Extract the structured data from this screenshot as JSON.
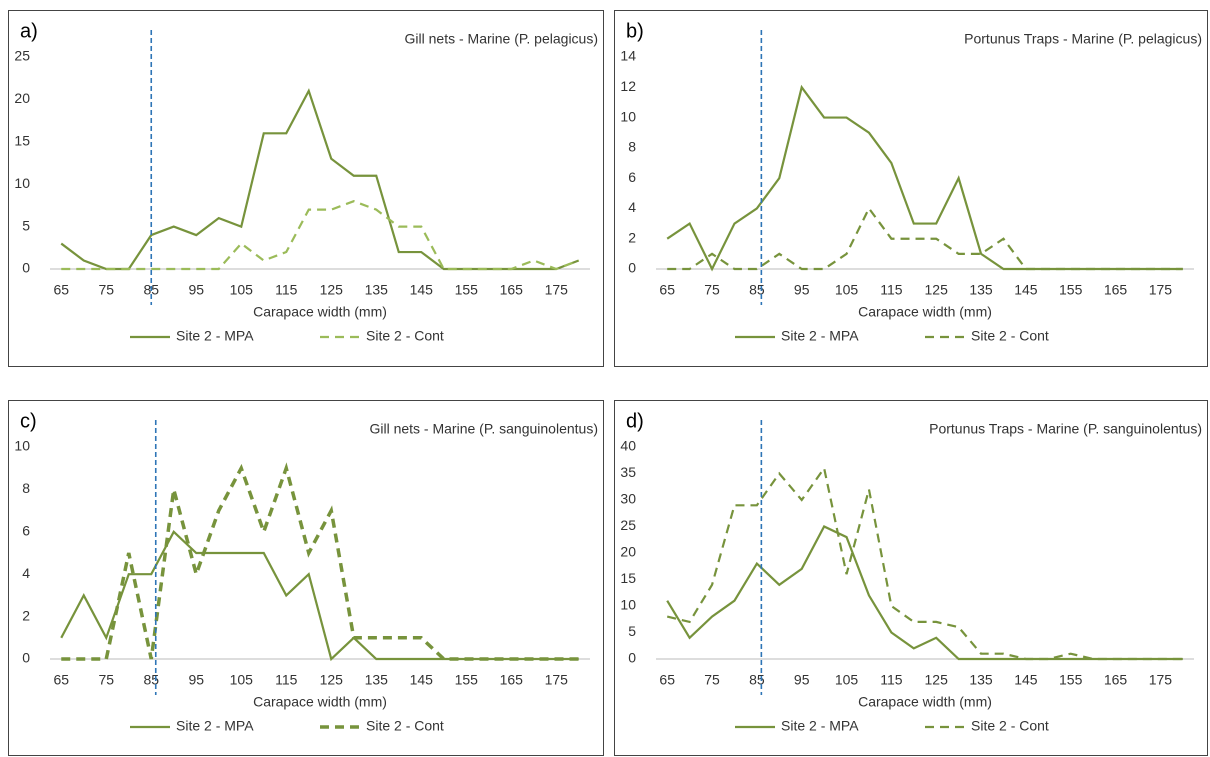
{
  "chart_data": [
    {
      "type": "line",
      "panel_label": "a)",
      "title": "Gill nets - Marine (P. pelagicus)",
      "x_label": "Carapace width (mm)",
      "categories": [
        "65",
        null,
        "75",
        null,
        "85",
        null,
        "95",
        null,
        "105",
        null,
        "115",
        null,
        "125",
        null,
        "135",
        null,
        "145",
        null,
        "155",
        null,
        "165",
        null,
        "175",
        null
      ],
      "series": [
        {
          "name": "Site 2 - MPA",
          "color": "#77933c",
          "line_style": "solid",
          "values": [
            3,
            1,
            0,
            0,
            4,
            5,
            4,
            6,
            5,
            16,
            16,
            21,
            13,
            11,
            11,
            2,
            2,
            0,
            0,
            0,
            0,
            0,
            0,
            1
          ]
        },
        {
          "name": "Site 2 - Cont",
          "color": "#9bbb59",
          "line_style": "dashed",
          "values": [
            0,
            0,
            0,
            0,
            0,
            0,
            0,
            0,
            3,
            1,
            2,
            7,
            7,
            8,
            7,
            5,
            5,
            0,
            0,
            0,
            0,
            1,
            0,
            1
          ]
        }
      ],
      "ylim": [
        0,
        25
      ],
      "yticks": [
        0,
        5,
        10,
        15,
        20,
        25
      ],
      "vline": 85,
      "vline_color": "#2e75b6"
    },
    {
      "type": "line",
      "panel_label": "b)",
      "title": "Portunus Traps - Marine (P. pelagicus)",
      "x_label": "Carapace width (mm)",
      "categories": [
        "65",
        null,
        "75",
        null,
        "85",
        null,
        "95",
        null,
        "105",
        null,
        "115",
        null,
        "125",
        null,
        "135",
        null,
        "145",
        null,
        "155",
        null,
        "165",
        null,
        "175",
        null
      ],
      "series": [
        {
          "name": "Site 2 - MPA",
          "color": "#77933c",
          "line_style": "solid",
          "values": [
            2,
            3,
            0,
            3,
            4,
            6,
            12,
            10,
            10,
            9,
            7,
            3,
            3,
            6,
            1,
            0,
            0,
            0,
            0,
            0,
            0,
            0,
            0,
            0
          ]
        },
        {
          "name": "Site 2 - Cont",
          "color": "#77933c",
          "line_style": "dashed",
          "values": [
            0,
            0,
            1,
            0,
            0,
            1,
            0,
            0,
            1,
            4,
            2,
            2,
            2,
            1,
            1,
            2,
            0,
            0,
            0,
            0,
            0,
            0,
            0,
            0
          ]
        }
      ],
      "ylim": [
        0,
        14
      ],
      "yticks": [
        0,
        2,
        4,
        6,
        8,
        10,
        12,
        14
      ],
      "vline": 86,
      "vline_color": "#2e75b6"
    },
    {
      "type": "line",
      "panel_label": "c)",
      "title": "Gill nets - Marine (P. sanguinolentus)",
      "x_label": "Carapace width (mm)",
      "categories": [
        "65",
        null,
        "75",
        null,
        "85",
        null,
        "95",
        null,
        "105",
        null,
        "115",
        null,
        "125",
        null,
        "135",
        null,
        "145",
        null,
        "155",
        null,
        "165",
        null,
        "175",
        null
      ],
      "series": [
        {
          "name": "Site 2 - MPA",
          "color": "#77933c",
          "line_style": "solid",
          "values": [
            1,
            3,
            1,
            4,
            4,
            6,
            5,
            5,
            5,
            5,
            3,
            4,
            0,
            1,
            0,
            0,
            0,
            0,
            0,
            0,
            0,
            0,
            0,
            0
          ]
        },
        {
          "name": "Site 2 - Cont",
          "color": "#77933c",
          "line_style": "dashed",
          "values": [
            0,
            0,
            0,
            5,
            0,
            8,
            4,
            7,
            9,
            6,
            9,
            5,
            7,
            1,
            1,
            1,
            1,
            0,
            0,
            0,
            0,
            0,
            0,
            0
          ]
        }
      ],
      "ylim": [
        0,
        10
      ],
      "yticks": [
        0,
        2,
        4,
        6,
        8,
        10
      ],
      "vline": 86,
      "vline_color": "#2e75b6"
    },
    {
      "type": "line",
      "panel_label": "d)",
      "title": "Portunus Traps - Marine (P. sanguinolentus)",
      "x_label": "Carapace width (mm)",
      "categories": [
        "65",
        null,
        "75",
        null,
        "85",
        null,
        "95",
        null,
        "105",
        null,
        "115",
        null,
        "125",
        null,
        "135",
        null,
        "145",
        null,
        "155",
        null,
        "165",
        null,
        "175",
        null
      ],
      "series": [
        {
          "name": "Site 2 - MPA",
          "color": "#77933c",
          "line_style": "solid",
          "values": [
            11,
            4,
            8,
            11,
            18,
            14,
            17,
            25,
            23,
            12,
            5,
            2,
            4,
            0,
            0,
            0,
            0,
            0,
            0,
            0,
            0,
            0,
            0,
            0
          ]
        },
        {
          "name": "Site 2 - Cont",
          "color": "#77933c",
          "line_style": "dashed",
          "values": [
            8,
            7,
            14,
            29,
            29,
            35,
            30,
            36,
            16,
            32,
            10,
            7,
            7,
            6,
            1,
            1,
            0,
            0,
            1,
            0,
            0,
            0,
            0,
            0
          ]
        }
      ],
      "ylim": [
        0,
        40
      ],
      "yticks": [
        0,
        5,
        10,
        15,
        20,
        25,
        30,
        35,
        40
      ],
      "vline": 86,
      "vline_color": "#2e75b6"
    }
  ]
}
